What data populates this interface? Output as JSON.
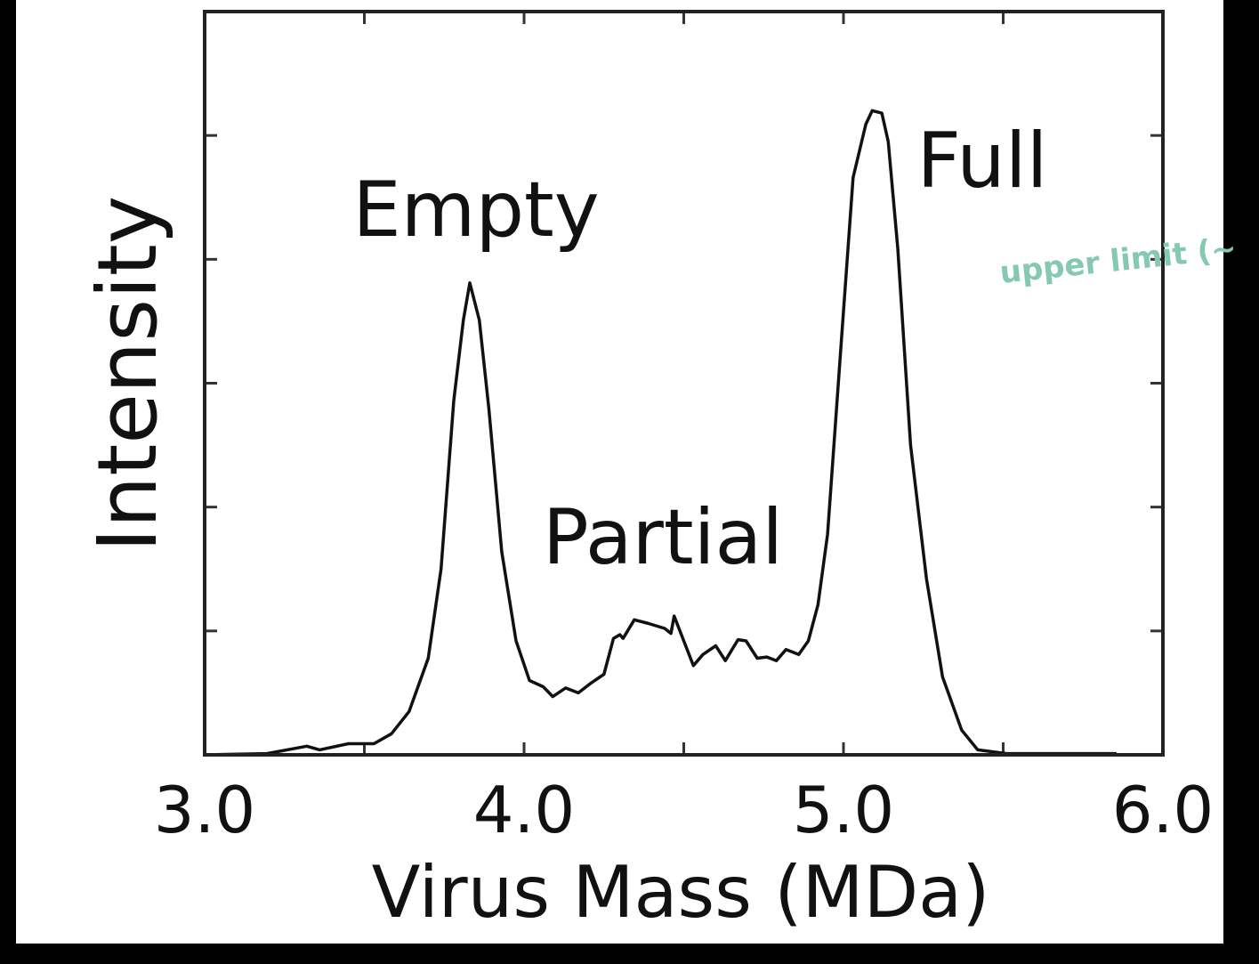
{
  "chart_data": {
    "type": "line",
    "title": "",
    "xlabel": "Virus Mass (MDa)",
    "ylabel": "Intensity",
    "xlim": [
      3.0,
      6.0
    ],
    "ylim": [
      0,
      6
    ],
    "x_ticks": [
      3.0,
      3.5,
      4.0,
      4.5,
      5.0,
      5.5,
      6.0
    ],
    "x_tick_labels": [
      "3.0",
      "4.0",
      "5.0",
      "6.0"
    ],
    "x_tick_label_values": [
      3.0,
      4.0,
      5.0,
      6.0
    ],
    "y_ticks": [
      0,
      1,
      2,
      3,
      4,
      5,
      6
    ],
    "y_tick_labels_shown": false,
    "grid": false,
    "line_color": "#111111",
    "annotations": [
      {
        "text": "Empty",
        "x": 3.85,
        "y": 4.5
      },
      {
        "text": "Partial",
        "x": 4.45,
        "y": 1.8
      },
      {
        "text": "Full",
        "x": 5.4,
        "y": 4.9
      }
    ],
    "handwritten_note": {
      "text": "upper limit (~",
      "color": "#86c9b2"
    },
    "series": [
      {
        "x": [
          3.0,
          3.195,
          3.32,
          3.36,
          3.45,
          3.53,
          3.585,
          3.64,
          3.7,
          3.74,
          3.78,
          3.81,
          3.83,
          3.86,
          3.89,
          3.93,
          3.975,
          4.017,
          4.06,
          4.09,
          4.13,
          4.17,
          4.21,
          4.25,
          4.28,
          4.3,
          4.31,
          4.345,
          4.39,
          4.44,
          4.46,
          4.47,
          4.5,
          4.53,
          4.56,
          4.6,
          4.63,
          4.67,
          4.695,
          4.73,
          4.76,
          4.79,
          4.82,
          4.86,
          4.89,
          4.92,
          4.95,
          4.99,
          5.03,
          5.07,
          5.09,
          5.12,
          5.14,
          5.17,
          5.21,
          5.26,
          5.31,
          5.37,
          5.42,
          5.51,
          5.7,
          5.855
        ],
        "y": [
          0,
          0.01,
          0.07,
          0.04,
          0.09,
          0.09,
          0.17,
          0.35,
          0.78,
          1.5,
          2.86,
          3.51,
          3.81,
          3.51,
          2.79,
          1.64,
          0.92,
          0.6,
          0.55,
          0.47,
          0.54,
          0.5,
          0.58,
          0.65,
          0.94,
          0.97,
          0.94,
          1.09,
          1.06,
          1.02,
          0.98,
          1.12,
          0.92,
          0.72,
          0.81,
          0.88,
          0.76,
          0.93,
          0.92,
          0.78,
          0.79,
          0.76,
          0.85,
          0.81,
          0.92,
          1.21,
          1.78,
          3.22,
          4.66,
          5.09,
          5.2,
          5.18,
          4.95,
          4.09,
          2.5,
          1.42,
          0.63,
          0.2,
          0.04,
          0.01,
          0.01,
          0.01
        ]
      }
    ]
  }
}
